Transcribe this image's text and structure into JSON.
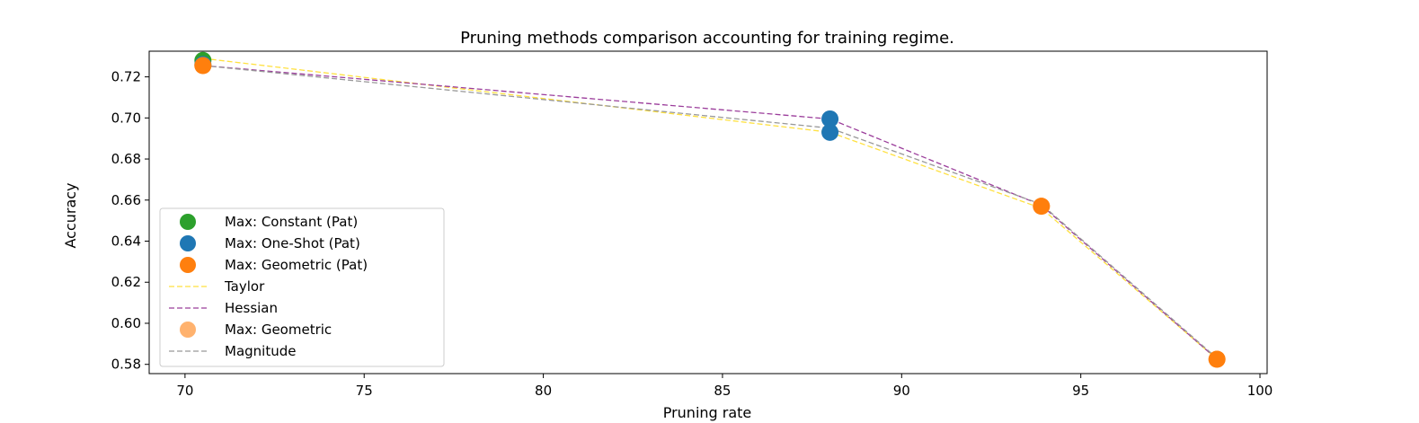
{
  "chart_data": {
    "type": "scatter",
    "title": "Pruning methods comparison accounting for training regime.",
    "xlabel": "Pruning rate",
    "ylabel": "Accuracy",
    "xlim": [
      69,
      100.2
    ],
    "ylim": [
      0.5755,
      0.7325
    ],
    "xticks": [
      "70",
      "75",
      "80",
      "85",
      "90",
      "95",
      "100"
    ],
    "yticks": [
      "0.58",
      "0.60",
      "0.62",
      "0.64",
      "0.66",
      "0.68",
      "0.70",
      "0.72"
    ],
    "grid": false,
    "legend_position": "lower-left",
    "series": [
      {
        "name": "Max: Constant (Pat)",
        "kind": "points",
        "color": "#2ca02c",
        "opacity": 1,
        "points": [
          {
            "x": 70.5,
            "y": 0.728
          }
        ]
      },
      {
        "name": "Max: One-Shot (Pat)",
        "kind": "points",
        "color": "#1f77b4",
        "opacity": 1,
        "points": [
          {
            "x": 70.5,
            "y": 0.726
          },
          {
            "x": 88.0,
            "y": 0.6995
          },
          {
            "x": 88.0,
            "y": 0.693
          }
        ]
      },
      {
        "name": "Max: Geometric (Pat)",
        "kind": "points",
        "color": "#ff7f0e",
        "opacity": 1,
        "points": [
          {
            "x": 70.5,
            "y": 0.7255
          },
          {
            "x": 93.9,
            "y": 0.657
          },
          {
            "x": 98.8,
            "y": 0.5825
          }
        ]
      },
      {
        "name": "Taylor",
        "kind": "line",
        "color": "#ffd700",
        "opacity": 0.75,
        "points": [
          {
            "x": 70.5,
            "y": 0.729
          },
          {
            "x": 88.0,
            "y": 0.693
          },
          {
            "x": 93.9,
            "y": 0.656
          },
          {
            "x": 98.8,
            "y": 0.5825
          }
        ]
      },
      {
        "name": "Hessian",
        "kind": "line",
        "color": "#9b3d9b",
        "opacity": 1,
        "points": [
          {
            "x": 70.5,
            "y": 0.7255
          },
          {
            "x": 88.0,
            "y": 0.6995
          },
          {
            "x": 93.9,
            "y": 0.6575
          },
          {
            "x": 98.8,
            "y": 0.5825
          }
        ]
      },
      {
        "name": "Max: Geometric",
        "kind": "points",
        "color": "#ff7f0e",
        "opacity": 0.6,
        "points": [
          {
            "x": 70.5,
            "y": 0.7255
          },
          {
            "x": 93.9,
            "y": 0.657
          },
          {
            "x": 98.8,
            "y": 0.5825
          }
        ]
      },
      {
        "name": "Magnitude",
        "kind": "line",
        "color": "#999999",
        "opacity": 1,
        "points": [
          {
            "x": 70.5,
            "y": 0.7255
          },
          {
            "x": 88.0,
            "y": 0.695
          },
          {
            "x": 93.9,
            "y": 0.658
          },
          {
            "x": 98.8,
            "y": 0.583
          }
        ]
      }
    ]
  }
}
